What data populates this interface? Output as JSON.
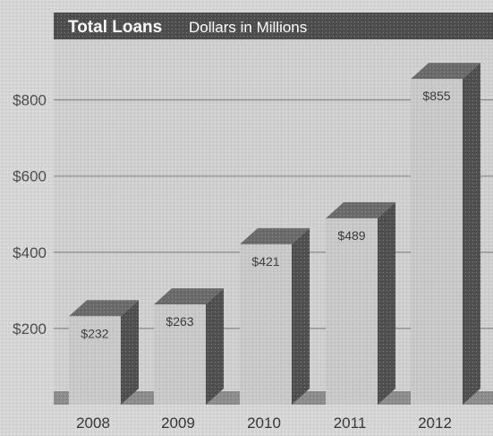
{
  "chart_data": {
    "type": "bar",
    "title": "Total Loans",
    "subtitle": "Dollars in Millions",
    "categories": [
      "2008",
      "2009",
      "2010",
      "2011",
      "2012"
    ],
    "values": [
      232,
      263,
      421,
      489,
      855
    ],
    "value_labels": [
      "$232",
      "$263",
      "$421",
      "$489",
      "$855"
    ],
    "y_ticks": [
      200,
      400,
      600,
      800
    ],
    "y_tick_labels": [
      "$200",
      "$400",
      "$600",
      "$800"
    ],
    "ylim": [
      0,
      900
    ],
    "grid": true,
    "style": "3d",
    "colors": {
      "background": "#d6d6d6",
      "plot": "#cdcdcd",
      "title_bar": "#4d4d4d",
      "bar_front": "#c8c8c8",
      "bar_top": "#6a6a6a",
      "bar_side": "#4f4f4f",
      "gridline": "#7a7a7a",
      "floor": "#8a8a8a"
    }
  }
}
